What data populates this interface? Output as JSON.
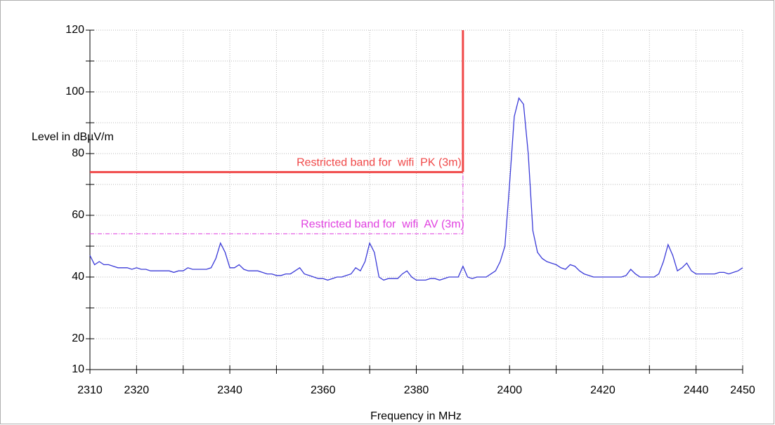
{
  "chart_data": {
    "type": "line",
    "ylabel": "Level in dBµV/m",
    "xlabel": "Frequency in MHz",
    "xlim": [
      2310,
      2450
    ],
    "xticks": [
      2310,
      2320,
      2340,
      2360,
      2380,
      2400,
      2420,
      2440,
      2450
    ],
    "x_minor_ticks": [
      2330,
      2350,
      2370,
      2390,
      2410,
      2430
    ],
    "ylim": [
      10,
      120
    ],
    "yticks": [
      10,
      20,
      40,
      60,
      80,
      100,
      120
    ],
    "y_minor_ticks": [
      30,
      50,
      70,
      90,
      110
    ],
    "grid": true,
    "limits": [
      {
        "name": "Restricted band for  wifi  PK (3m)",
        "color": "#f04848",
        "level": 74,
        "x_end": 2390,
        "style": "solid"
      },
      {
        "name": "Restricted band for  wifi  AV (3m)",
        "color": "#e040e0",
        "level": 54,
        "x_end": 2390,
        "style": "dashdot"
      }
    ],
    "x": [
      2310,
      2311,
      2312,
      2313,
      2314,
      2315,
      2316,
      2317,
      2318,
      2319,
      2320,
      2321,
      2322,
      2323,
      2324,
      2325,
      2326,
      2327,
      2328,
      2329,
      2330,
      2331,
      2332,
      2333,
      2334,
      2335,
      2336,
      2337,
      2338,
      2339,
      2340,
      2341,
      2342,
      2343,
      2344,
      2345,
      2346,
      2347,
      2348,
      2349,
      2350,
      2351,
      2352,
      2353,
      2354,
      2355,
      2356,
      2357,
      2358,
      2359,
      2360,
      2361,
      2362,
      2363,
      2364,
      2365,
      2366,
      2367,
      2368,
      2369,
      2370,
      2371,
      2372,
      2373,
      2374,
      2375,
      2376,
      2377,
      2378,
      2379,
      2380,
      2381,
      2382,
      2383,
      2384,
      2385,
      2386,
      2387,
      2388,
      2389,
      2390,
      2391,
      2392,
      2393,
      2394,
      2395,
      2396,
      2397,
      2398,
      2399,
      2400,
      2401,
      2402,
      2403,
      2404,
      2405,
      2406,
      2407,
      2408,
      2409,
      2410,
      2411,
      2412,
      2413,
      2414,
      2415,
      2416,
      2417,
      2418,
      2419,
      2420,
      2421,
      2422,
      2423,
      2424,
      2425,
      2426,
      2427,
      2428,
      2429,
      2430,
      2431,
      2432,
      2433,
      2434,
      2435,
      2436,
      2437,
      2438,
      2439,
      2440,
      2441,
      2442,
      2443,
      2444,
      2445,
      2446,
      2447,
      2448,
      2449,
      2450
    ],
    "series": [
      {
        "color": "#3a3ad8",
        "values": [
          47,
          44,
          45,
          44,
          44,
          43.5,
          43,
          43,
          43,
          42.5,
          43,
          42.5,
          42.5,
          42,
          42,
          42,
          42,
          42,
          41.5,
          42,
          42,
          43,
          42.5,
          42.5,
          42.5,
          42.5,
          43,
          46,
          51,
          48,
          43,
          43,
          44,
          42.5,
          42,
          42,
          42,
          41.5,
          41,
          41,
          40.5,
          40.5,
          41,
          41,
          42,
          43,
          41,
          40.5,
          40,
          39.5,
          39.5,
          39,
          39.5,
          40,
          40,
          40.5,
          41,
          43,
          42,
          45,
          51,
          48,
          40,
          39,
          39.5,
          39.5,
          39.5,
          41,
          42,
          40,
          39,
          39,
          39,
          39.5,
          39.5,
          39,
          39.5,
          40,
          40,
          40,
          43.5,
          40,
          39.5,
          40,
          40,
          40,
          41,
          42,
          45,
          50,
          70,
          92,
          98,
          96,
          80,
          55,
          48,
          46,
          45,
          44.5,
          44,
          43,
          42.5,
          44,
          43.5,
          42,
          41,
          40.5,
          40,
          40,
          40,
          40,
          40,
          40,
          40,
          40.5,
          42.5,
          41,
          40,
          40,
          40,
          40,
          41,
          45,
          50.5,
          47,
          42,
          43,
          44.5,
          42,
          41,
          41,
          41,
          41,
          41,
          41.5,
          41.5,
          41,
          41.5,
          42,
          43
        ]
      }
    ]
  }
}
